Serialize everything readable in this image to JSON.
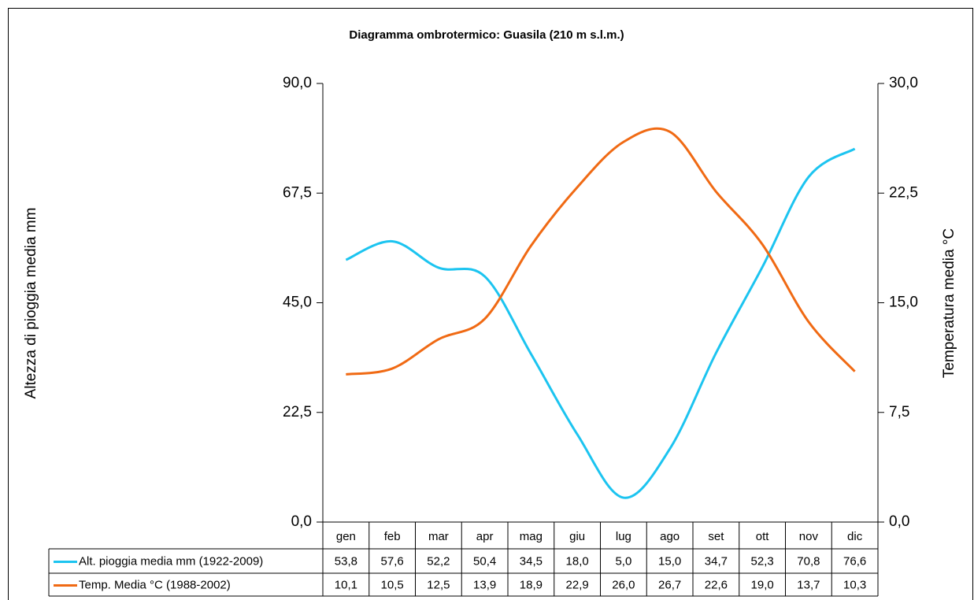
{
  "chart_data": {
    "type": "line",
    "title": "Diagramma ombrotermico: Guasila (210 m s.l.m.)",
    "y_label": "Altezza di pioggia media mm",
    "y2_label": "Temperatura media °C",
    "categories": [
      "gen",
      "feb",
      "mar",
      "apr",
      "mag",
      "giu",
      "lug",
      "ago",
      "set",
      "ott",
      "nov",
      "dic"
    ],
    "series": [
      {
        "name": "Alt. pioggia media mm (1922-2009)",
        "color": "#1cc4f0",
        "axis": "y",
        "values": [
          53.8,
          57.6,
          52.2,
          50.4,
          34.5,
          18.0,
          5.0,
          15.0,
          34.7,
          52.3,
          70.8,
          76.6
        ],
        "value_labels": [
          "53,8",
          "57,6",
          "52,2",
          "50,4",
          "34,5",
          "18,0",
          "5,0",
          "15,0",
          "34,7",
          "52,3",
          "70,8",
          "76,6"
        ]
      },
      {
        "name": "Temp. Media °C (1988-2002)",
        "color": "#f06a14",
        "axis": "y2",
        "values": [
          10.1,
          10.5,
          12.5,
          13.9,
          18.9,
          22.9,
          26.0,
          26.7,
          22.6,
          19.0,
          13.7,
          10.3
        ],
        "value_labels": [
          "10,1",
          "10,5",
          "12,5",
          "13,9",
          "18,9",
          "22,9",
          "26,0",
          "26,7",
          "22,6",
          "19,0",
          "13,7",
          "10,3"
        ]
      }
    ],
    "ylim": [
      0,
      90
    ],
    "yticks": [
      {
        "value": 0,
        "label": "0,0"
      },
      {
        "value": 22.5,
        "label": "22,5"
      },
      {
        "value": 45,
        "label": "45,0"
      },
      {
        "value": 67.5,
        "label": "67,5"
      },
      {
        "value": 90,
        "label": "90,0"
      }
    ],
    "y2lim": [
      0,
      30
    ],
    "y2ticks": [
      {
        "value": 0,
        "label": "0,0"
      },
      {
        "value": 7.5,
        "label": "7,5"
      },
      {
        "value": 15,
        "label": "15,0"
      },
      {
        "value": 22.5,
        "label": "22,5"
      },
      {
        "value": 30,
        "label": "30,0"
      }
    ],
    "grid": false
  }
}
